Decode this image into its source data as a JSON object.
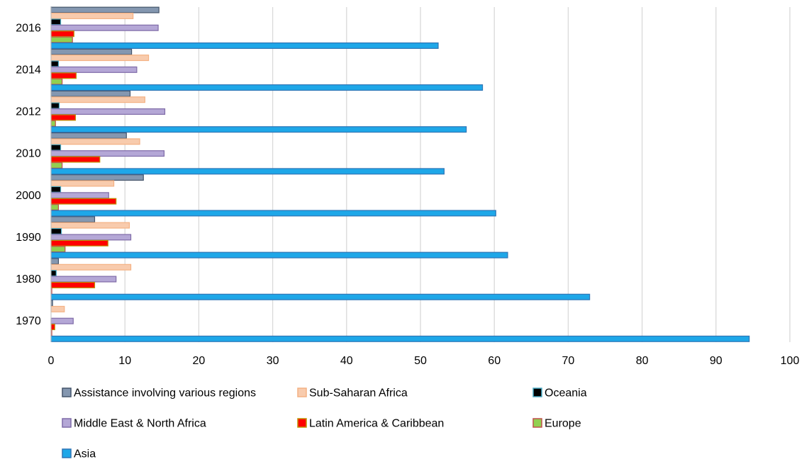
{
  "chart_data": {
    "type": "bar",
    "orientation": "horizontal",
    "categories": [
      "1970",
      "1980",
      "1990",
      "2000",
      "2010",
      "2012",
      "2014",
      "2016"
    ],
    "xlim": [
      0,
      100
    ],
    "xticks": [
      "0",
      "10",
      "20",
      "30",
      "40",
      "50",
      "60",
      "70",
      "80",
      "90",
      "100"
    ],
    "grid": "vertical",
    "legend_position": "bottom",
    "series": [
      {
        "name": "Assistance involving various regions",
        "color": "#8497b0",
        "border": "#44546a",
        "values": [
          0.2,
          1.0,
          5.9,
          12.5,
          10.2,
          10.7,
          10.9,
          14.6
        ]
      },
      {
        "name": "Sub-Saharan Africa",
        "color": "#f8cbad",
        "border": "#f4b183",
        "values": [
          1.8,
          10.8,
          10.6,
          8.5,
          12.0,
          12.7,
          13.2,
          11.1
        ]
      },
      {
        "name": "Oceania",
        "color": "#000000",
        "border": "#4bacc6",
        "values": [
          0.0,
          0.7,
          1.4,
          1.3,
          1.3,
          1.1,
          1.0,
          1.3
        ]
      },
      {
        "name": "Middle East & North Africa",
        "color": "#b4a7d6",
        "border": "#7f6ba8",
        "values": [
          3.0,
          8.8,
          10.8,
          7.8,
          15.3,
          15.4,
          11.6,
          14.5
        ]
      },
      {
        "name": "Latin America & Caribbean",
        "color": "#ff0000",
        "border": "#bf9000",
        "values": [
          0.5,
          5.9,
          7.7,
          8.8,
          6.6,
          3.3,
          3.4,
          3.1
        ]
      },
      {
        "name": "Europe",
        "color": "#92d050",
        "border": "#c0504d",
        "values": [
          0.1,
          0.1,
          1.9,
          1.0,
          1.5,
          0.6,
          1.5,
          2.9
        ]
      },
      {
        "name": "Asia",
        "color": "#1ea7e8",
        "border": "#2e75b6",
        "values": [
          94.5,
          72.9,
          61.8,
          60.2,
          53.2,
          56.2,
          58.4,
          52.4
        ]
      }
    ]
  }
}
